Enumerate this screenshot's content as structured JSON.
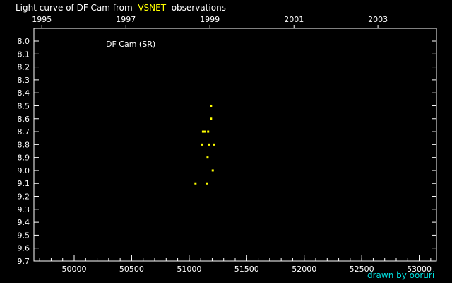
{
  "title": {
    "prefix": "Light curve of DF Cam from",
    "source": "VSNET",
    "suffix": "observations"
  },
  "credit": "drawn by ooruri",
  "colors": {
    "background": "#000000",
    "axes": "#ffffff",
    "data_point": "#ffff00",
    "source_highlight": "#ffff00",
    "credit": "#00e0e0"
  },
  "chart_data": {
    "type": "scatter",
    "annotation": "DF Cam (SR)",
    "x_axis": {
      "range": [
        49650,
        53150
      ],
      "ticks": [
        50000,
        50500,
        51000,
        51500,
        52000,
        52500,
        53000
      ],
      "tick_labels": [
        "50000",
        "50500",
        "51000",
        "51500",
        "52000",
        "52500",
        "53000"
      ],
      "minor_step": 100
    },
    "top_axis": {
      "tick_labels": [
        "1995",
        "1997",
        "1999",
        "2001",
        "2003"
      ],
      "tick_jd": [
        49719,
        50450,
        51180,
        51911,
        52641
      ]
    },
    "y_axis": {
      "range": [
        8.0,
        9.7
      ],
      "inverted": true,
      "step": 0.1,
      "tick_labels": [
        "8.0",
        "8.1",
        "8.2",
        "8.3",
        "8.4",
        "8.5",
        "8.6",
        "8.7",
        "8.8",
        "8.9",
        "9.0",
        "9.1",
        "9.2",
        "9.3",
        "9.4",
        "9.5",
        "9.6",
        "9.7"
      ]
    },
    "grid": false,
    "points": [
      {
        "x": 51190,
        "y": 8.5
      },
      {
        "x": 51190,
        "y": 8.6
      },
      {
        "x": 51120,
        "y": 8.7
      },
      {
        "x": 51135,
        "y": 8.7
      },
      {
        "x": 51165,
        "y": 8.7
      },
      {
        "x": 51110,
        "y": 8.8
      },
      {
        "x": 51170,
        "y": 8.8
      },
      {
        "x": 51215,
        "y": 8.8
      },
      {
        "x": 51160,
        "y": 8.9
      },
      {
        "x": 51205,
        "y": 9.0
      },
      {
        "x": 51055,
        "y": 9.1
      },
      {
        "x": 51155,
        "y": 9.1
      }
    ]
  }
}
